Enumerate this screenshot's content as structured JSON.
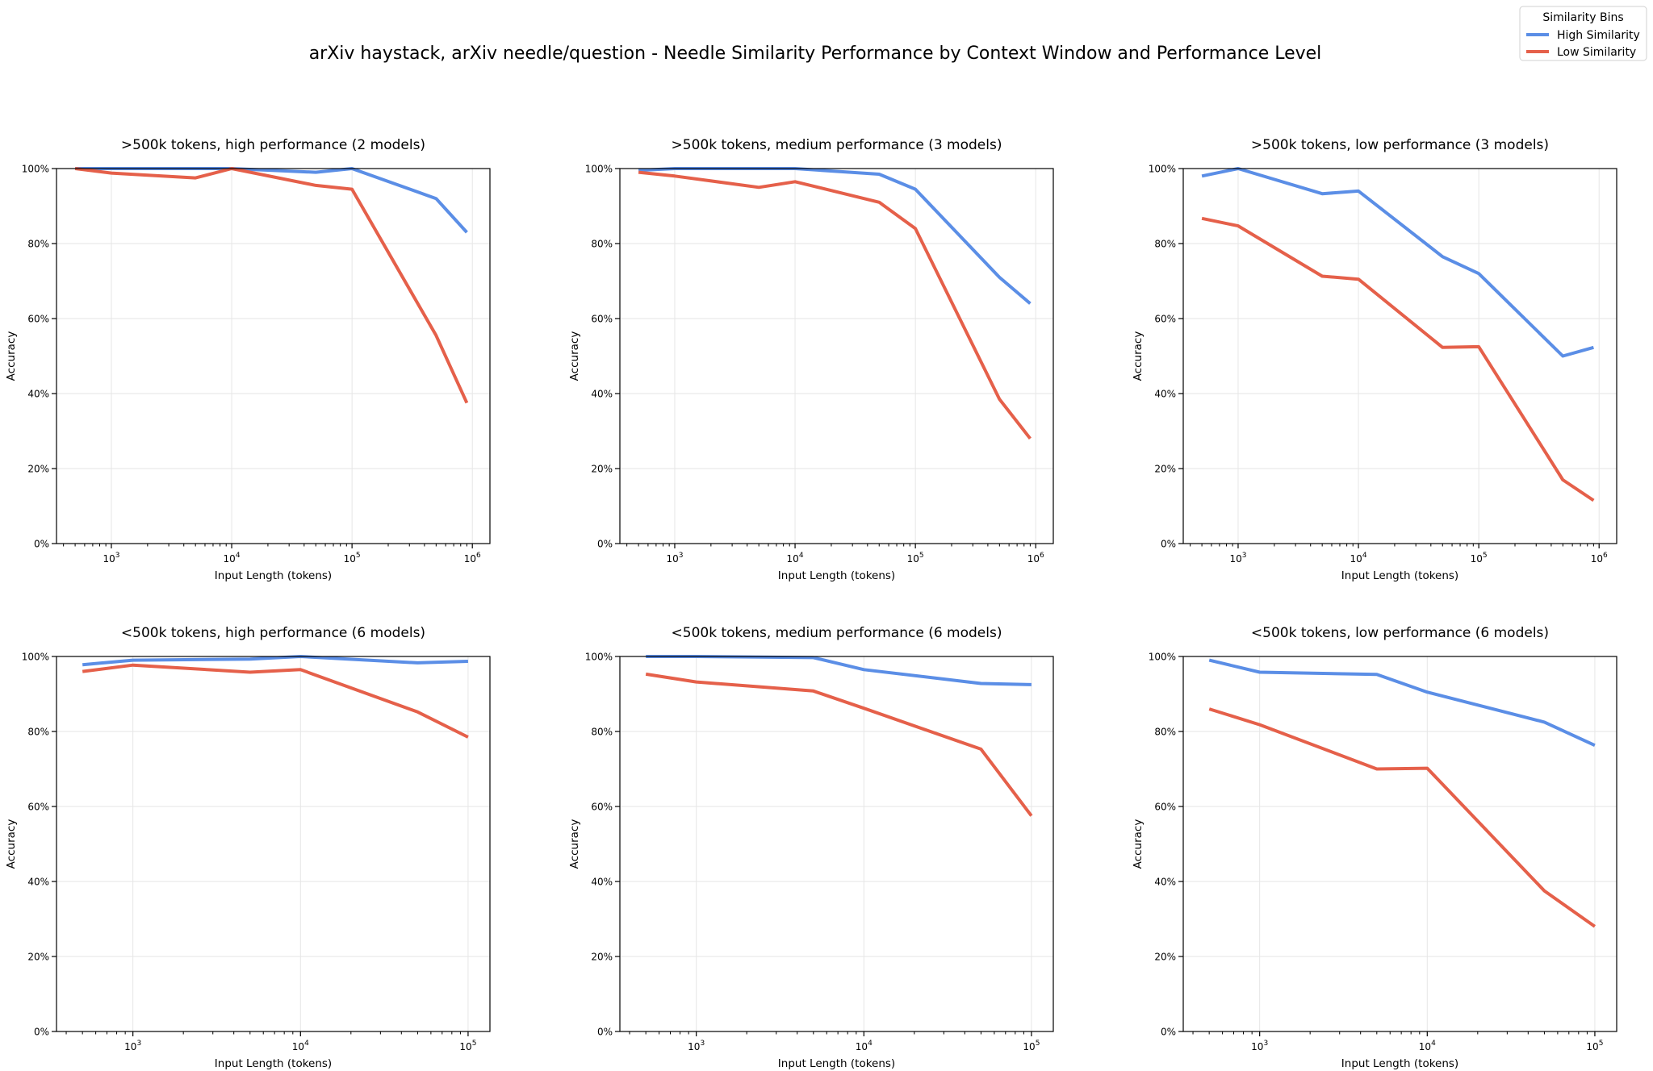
{
  "suptitle": "arXiv haystack, arXiv needle/question - Needle Similarity Performance by Context Window and Performance Level",
  "legend": {
    "title": "Similarity Bins",
    "placement": "top-right",
    "entries": [
      {
        "label": "High Similarity",
        "color": "#5b8ee6"
      },
      {
        "label": "Low Similarity",
        "color": "#e5604a"
      }
    ]
  },
  "chart_data": [
    {
      "type": "line",
      "title": ">500k tokens, high performance (2 models)",
      "xlabel": "Input Length (tokens)",
      "ylabel": "Accuracy",
      "xscale": "log",
      "xlim": [
        350,
        1400000
      ],
      "ylim": [
        0,
        100
      ],
      "xticks": [
        1000,
        10000,
        100000,
        1000000
      ],
      "xtick_labels": [
        "10^3",
        "10^4",
        "10^5",
        "10^6"
      ],
      "yticks": [
        0,
        20,
        40,
        60,
        80,
        100
      ],
      "ytick_labels": [
        "0%",
        "20%",
        "40%",
        "60%",
        "80%",
        "100%"
      ],
      "grid": true,
      "x": [
        500,
        1000,
        5000,
        10000,
        50000,
        100000,
        500000,
        900000
      ],
      "series": [
        {
          "name": "High Similarity",
          "color": "#5b8ee6",
          "values": [
            100,
            100,
            100,
            100,
            99,
            100,
            92,
            83
          ]
        },
        {
          "name": "Low Similarity",
          "color": "#e5604a",
          "values": [
            100,
            98.8,
            97.5,
            100,
            95.5,
            94.5,
            55.5,
            37.5
          ]
        }
      ]
    },
    {
      "type": "line",
      "title": ">500k tokens, medium performance (3 models)",
      "xlabel": "Input Length (tokens)",
      "ylabel": "Accuracy",
      "xscale": "log",
      "xlim": [
        350,
        1400000
      ],
      "ylim": [
        0,
        100
      ],
      "xticks": [
        1000,
        10000,
        100000,
        1000000
      ],
      "xtick_labels": [
        "10^3",
        "10^4",
        "10^5",
        "10^6"
      ],
      "yticks": [
        0,
        20,
        40,
        60,
        80,
        100
      ],
      "ytick_labels": [
        "0%",
        "20%",
        "40%",
        "60%",
        "80%",
        "100%"
      ],
      "grid": true,
      "x": [
        500,
        1000,
        5000,
        10000,
        50000,
        100000,
        500000,
        900000
      ],
      "series": [
        {
          "name": "High Similarity",
          "color": "#5b8ee6",
          "values": [
            99.5,
            100,
            100,
            100,
            98.5,
            94.5,
            71,
            64
          ]
        },
        {
          "name": "Low Similarity",
          "color": "#e5604a",
          "values": [
            99,
            98,
            95,
            96.5,
            91,
            84,
            38.5,
            28
          ]
        }
      ]
    },
    {
      "type": "line",
      "title": ">500k tokens, low performance (3 models)",
      "xlabel": "Input Length (tokens)",
      "ylabel": "Accuracy",
      "xscale": "log",
      "xlim": [
        350,
        1400000
      ],
      "ylim": [
        0,
        100
      ],
      "xticks": [
        1000,
        10000,
        100000,
        1000000
      ],
      "xtick_labels": [
        "10^3",
        "10^4",
        "10^5",
        "10^6"
      ],
      "yticks": [
        0,
        20,
        40,
        60,
        80,
        100
      ],
      "ytick_labels": [
        "0%",
        "20%",
        "40%",
        "60%",
        "80%",
        "100%"
      ],
      "grid": true,
      "x": [
        500,
        1000,
        5000,
        10000,
        50000,
        100000,
        500000,
        900000
      ],
      "series": [
        {
          "name": "High Similarity",
          "color": "#5b8ee6",
          "values": [
            98,
            100,
            93.3,
            94,
            76.5,
            72,
            50,
            52.3
          ]
        },
        {
          "name": "Low Similarity",
          "color": "#e5604a",
          "values": [
            86.7,
            84.7,
            71.3,
            70.5,
            52.3,
            52.5,
            17,
            11.5
          ]
        }
      ]
    },
    {
      "type": "line",
      "title": "<500k tokens, high performance (6 models)",
      "xlabel": "Input Length (tokens)",
      "ylabel": "Accuracy",
      "xscale": "log",
      "xlim": [
        350,
        135000
      ],
      "ylim": [
        0,
        100
      ],
      "xticks": [
        1000,
        10000,
        100000
      ],
      "xtick_labels": [
        "10^3",
        "10^4",
        "10^5"
      ],
      "yticks": [
        0,
        20,
        40,
        60,
        80,
        100
      ],
      "ytick_labels": [
        "0%",
        "20%",
        "40%",
        "60%",
        "80%",
        "100%"
      ],
      "grid": true,
      "x": [
        500,
        1000,
        5000,
        10000,
        50000,
        100000
      ],
      "series": [
        {
          "name": "High Similarity",
          "color": "#5b8ee6",
          "values": [
            97.8,
            99,
            99.3,
            100,
            98.3,
            98.7
          ]
        },
        {
          "name": "Low Similarity",
          "color": "#e5604a",
          "values": [
            96,
            97.7,
            95.8,
            96.5,
            85.2,
            78.5
          ]
        }
      ]
    },
    {
      "type": "line",
      "title": "<500k tokens, medium performance (6 models)",
      "xlabel": "Input Length (tokens)",
      "ylabel": "Accuracy",
      "xscale": "log",
      "xlim": [
        350,
        135000
      ],
      "ylim": [
        0,
        100
      ],
      "xticks": [
        1000,
        10000,
        100000
      ],
      "xtick_labels": [
        "10^3",
        "10^4",
        "10^5"
      ],
      "yticks": [
        0,
        20,
        40,
        60,
        80,
        100
      ],
      "ytick_labels": [
        "0%",
        "20%",
        "40%",
        "60%",
        "80%",
        "100%"
      ],
      "grid": true,
      "x": [
        500,
        1000,
        5000,
        10000,
        50000,
        100000
      ],
      "series": [
        {
          "name": "High Similarity",
          "color": "#5b8ee6",
          "values": [
            100,
            100,
            99.7,
            96.5,
            92.8,
            92.5
          ]
        },
        {
          "name": "Low Similarity",
          "color": "#e5604a",
          "values": [
            95.3,
            93.2,
            90.8,
            86.2,
            75.3,
            57.5
          ]
        }
      ]
    },
    {
      "type": "line",
      "title": "<500k tokens, low performance (6 models)",
      "xlabel": "Input Length (tokens)",
      "ylabel": "Accuracy",
      "xscale": "log",
      "xlim": [
        350,
        135000
      ],
      "ylim": [
        0,
        100
      ],
      "xticks": [
        1000,
        10000,
        100000
      ],
      "xtick_labels": [
        "10^3",
        "10^4",
        "10^5"
      ],
      "yticks": [
        0,
        20,
        40,
        60,
        80,
        100
      ],
      "ytick_labels": [
        "0%",
        "20%",
        "40%",
        "60%",
        "80%",
        "100%"
      ],
      "grid": true,
      "x": [
        500,
        1000,
        5000,
        10000,
        50000,
        100000
      ],
      "series": [
        {
          "name": "High Similarity",
          "color": "#5b8ee6",
          "values": [
            99,
            95.8,
            95.2,
            90.5,
            82.5,
            76.3
          ]
        },
        {
          "name": "Low Similarity",
          "color": "#e5604a",
          "values": [
            86,
            81.8,
            70,
            70.2,
            37.5,
            28
          ]
        }
      ]
    }
  ]
}
